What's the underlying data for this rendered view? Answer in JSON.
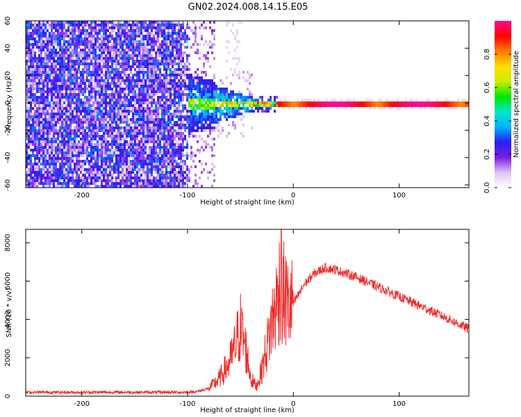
{
  "figure": {
    "title": "GN02.2024.008.14.15.E05"
  },
  "colors": {
    "snr_line": "#ee2a2a",
    "axis": "#000000"
  },
  "chart_data": [
    {
      "type": "heatmap",
      "xlabel": "Height of straight line (km)",
      "ylabel": "Frequency (Hz)",
      "xlim": [
        -253,
        166
      ],
      "ylim": [
        -62,
        60
      ],
      "x_ticks": [
        -200,
        -100,
        0,
        100
      ],
      "y_ticks": [
        -60,
        -40,
        -20,
        0,
        20,
        40,
        60
      ],
      "colorbar": {
        "label": "Normalized spectral amplitude",
        "range": [
          0,
          1
        ],
        "ticks": [
          "0.0",
          "0.2",
          "0.4",
          "0.6",
          "0.8"
        ],
        "colormap": [
          "#ffffff",
          "#dcc3f2",
          "#7a1ae6",
          "#2a1ef0",
          "#00b4ff",
          "#00e8c8",
          "#00e600",
          "#ccee00",
          "#ffdd00",
          "#ff7a00",
          "#ff0000",
          "#ff0a8c"
        ]
      },
      "description_regions": [
        {
          "x": [
            -253,
            -100
          ],
          "freq": [
            -62,
            60
          ],
          "level": "noise-purple"
        },
        {
          "x": [
            -100,
            -30
          ],
          "freq": [
            -20,
            15
          ],
          "level": "mixed-green-blue"
        },
        {
          "x": [
            -30,
            166
          ],
          "freq": [
            -2,
            2
          ],
          "level": "strong-red-line"
        }
      ]
    },
    {
      "type": "line",
      "xlabel": "Height of straight line (km)",
      "ylabel": "SNR (10 * v/v)",
      "xlim": [
        -253,
        166
      ],
      "ylim": [
        0,
        8700
      ],
      "x_ticks": [
        -200,
        -100,
        0,
        100
      ],
      "y_ticks": [
        0,
        2000,
        4000,
        6000,
        8000
      ],
      "series": [
        {
          "x": [
            -253,
            -200,
            -150,
            -100,
            -90,
            -80,
            -70,
            -60,
            -55,
            -50,
            -45,
            -40,
            -35,
            -30,
            -25,
            -20,
            -15,
            -12,
            -10,
            -5,
            0,
            10,
            20,
            30,
            40,
            60,
            80,
            100,
            120,
            140,
            166
          ],
          "y": [
            200,
            200,
            200,
            200,
            250,
            400,
            900,
            1800,
            2600,
            3600,
            2500,
            900,
            500,
            1300,
            2600,
            3900,
            5000,
            6200,
            5500,
            4700,
            4800,
            5800,
            6400,
            6700,
            6600,
            6200,
            5700,
            5200,
            4700,
            4200,
            3500
          ]
        }
      ]
    }
  ]
}
